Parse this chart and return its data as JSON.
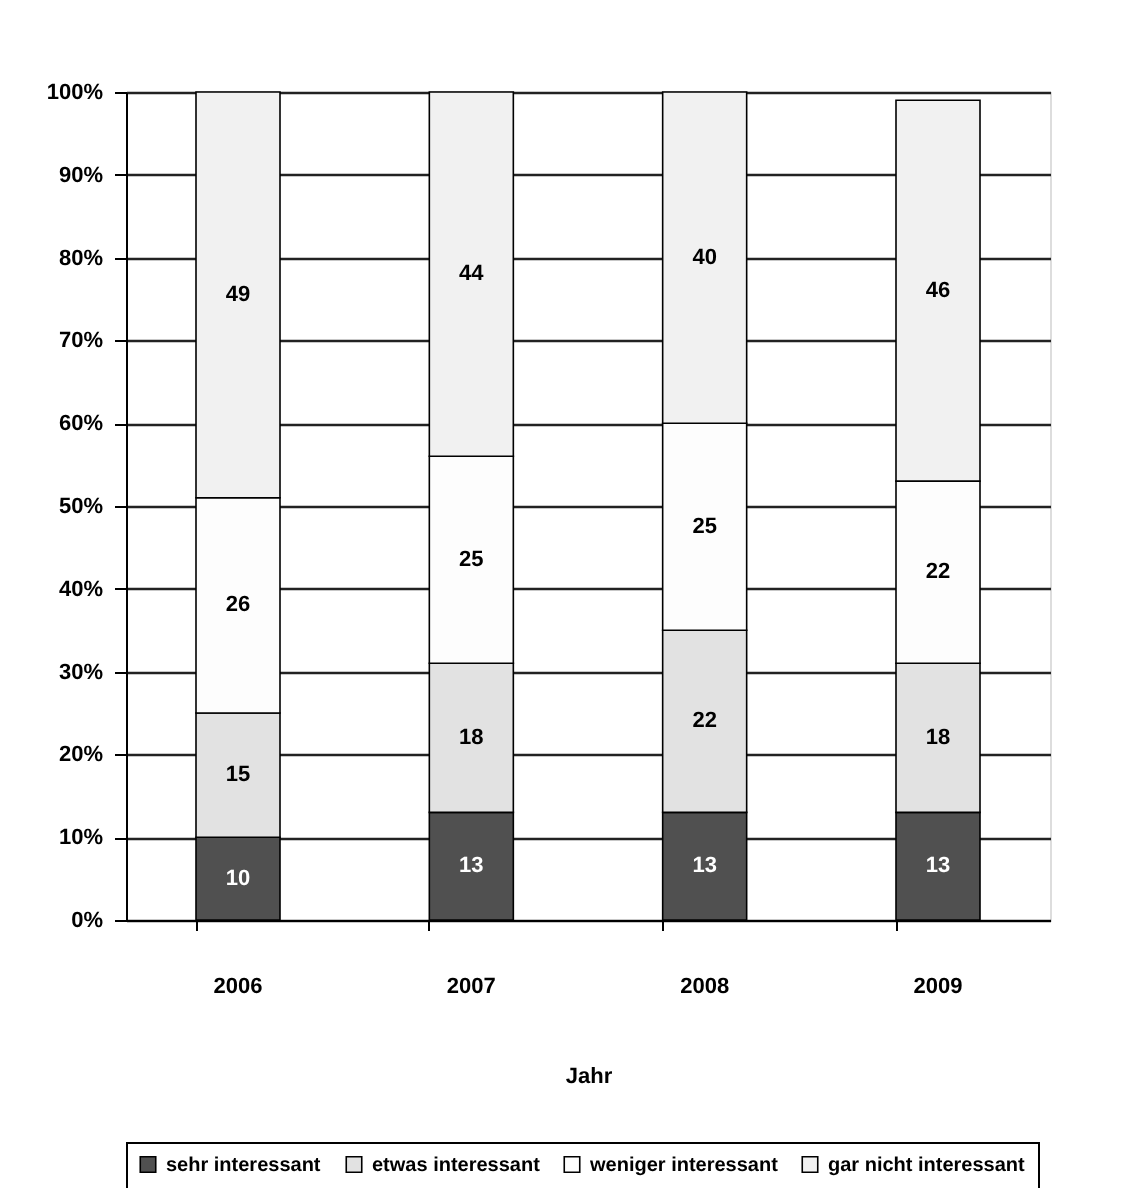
{
  "chart_data": {
    "type": "bar",
    "stacked": true,
    "categories": [
      "2006",
      "2007",
      "2008",
      "2009"
    ],
    "xlabel": "Jahr",
    "series": [
      {
        "name": "sehr interessant",
        "color": "#505050",
        "values": [
          10,
          13,
          13,
          13
        ]
      },
      {
        "name": "etwas interessant",
        "color": "#e2e2e2",
        "values": [
          15,
          18,
          22,
          18
        ]
      },
      {
        "name": "weniger interessant",
        "color": "#fdfdfd",
        "values": [
          26,
          25,
          25,
          22
        ]
      },
      {
        "name": "gar nicht interessant",
        "color": "#f1f1f1",
        "values": [
          49,
          44,
          40,
          46
        ]
      }
    ],
    "ylim": [
      0,
      100
    ],
    "yticks": [
      {
        "value": 0,
        "label": "0%"
      },
      {
        "value": 10,
        "label": "10%"
      },
      {
        "value": 20,
        "label": "20%"
      },
      {
        "value": 30,
        "label": "30%"
      },
      {
        "value": 40,
        "label": "40%"
      },
      {
        "value": 50,
        "label": "50%"
      },
      {
        "value": 60,
        "label": "60%"
      },
      {
        "value": 70,
        "label": "70%"
      },
      {
        "value": 80,
        "label": "80%"
      },
      {
        "value": 90,
        "label": "90%"
      },
      {
        "value": 100,
        "label": "100%"
      }
    ],
    "grid": "y",
    "legend": "bottom",
    "data_labels": true
  }
}
